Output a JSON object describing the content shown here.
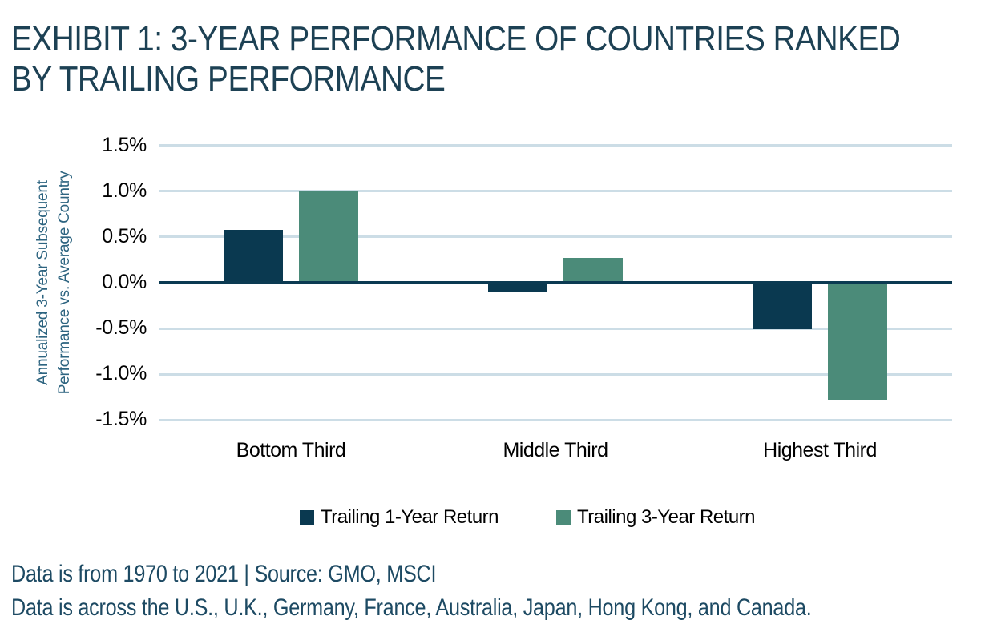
{
  "header": {
    "title": "EXHIBIT 1: 3-YEAR PERFORMANCE OF COUNTRIES RANKED BY TRAILING PERFORMANCE",
    "title_lines": [
      "EXHIBIT 1: 3-YEAR PERFORMANCE OF COUNTRIES RANKED",
      "BY TRAILING PERFORMANCE"
    ]
  },
  "chart_data": {
    "type": "bar",
    "title": "EXHIBIT 1: 3-YEAR PERFORMANCE OF COUNTRIES RANKED BY TRAILING PERFORMANCE",
    "categories": [
      "Bottom Third",
      "Middle Third",
      "Highest Third"
    ],
    "series": [
      {
        "name": "Trailing 1-Year Return",
        "color": "#0a3950",
        "values": [
          0.58,
          -0.1,
          -0.51
        ]
      },
      {
        "name": "Trailing 3-Year Return",
        "color": "#4b8b79",
        "values": [
          1.01,
          0.27,
          -1.28
        ]
      }
    ],
    "ylabel": "Annualized 3-Year Subsequent Performance vs. Average Country",
    "ylabel_lines": [
      "Annualized 3-Year Subsequent",
      "Performance vs. Average Country"
    ],
    "xlabel": "",
    "yticks": [
      1.5,
      1.0,
      0.5,
      0.0,
      -0.5,
      -1.0,
      -1.5
    ],
    "ytick_labels": [
      "1.5%",
      "1.0%",
      "0.5%",
      "0.0%",
      "-0.5%",
      "-1.0%",
      "-1.5%"
    ],
    "ylim": [
      -1.5,
      1.5
    ],
    "grid": true,
    "zero_line_color": "#0b3a52",
    "gridline_color": "#ccdde6",
    "legend_position": "bottom"
  },
  "legend": {
    "items": [
      {
        "label": "Trailing 1-Year Return",
        "color": "#0a3950"
      },
      {
        "label": "Trailing 3-Year Return",
        "color": "#4b8b79"
      }
    ]
  },
  "footer": {
    "line1": "Data is from 1970 to 2021 | Source: GMO, MSCI",
    "line2": "Data is across the U.S., U.K., Germany, France, Australia, Japan, Hong Kong, and Canada."
  }
}
